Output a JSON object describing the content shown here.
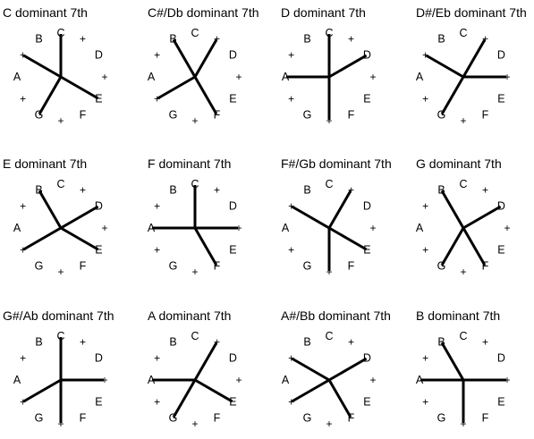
{
  "ring": [
    "C",
    "+",
    "D",
    "+",
    "E",
    "F",
    "+",
    "G",
    "+",
    "A",
    "+",
    "B"
  ],
  "chords": [
    {
      "title": "C dominant 7th",
      "spokes": [
        0,
        4,
        7,
        10
      ]
    },
    {
      "title": "C#/Db dominant 7th",
      "spokes": [
        1,
        5,
        8,
        11
      ]
    },
    {
      "title": "D dominant 7th",
      "spokes": [
        2,
        6,
        9,
        0
      ]
    },
    {
      "title": "D#/Eb dominant 7th",
      "spokes": [
        3,
        7,
        10,
        1
      ]
    },
    {
      "title": "E dominant 7th",
      "spokes": [
        4,
        8,
        11,
        2
      ]
    },
    {
      "title": "F dominant 7th",
      "spokes": [
        5,
        9,
        0,
        3
      ]
    },
    {
      "title": "F#/Gb dominant 7th",
      "spokes": [
        6,
        10,
        1,
        4
      ]
    },
    {
      "title": "G dominant 7th",
      "spokes": [
        7,
        11,
        2,
        5
      ]
    },
    {
      "title": "G#/Ab dominant 7th",
      "spokes": [
        8,
        0,
        3,
        6
      ]
    },
    {
      "title": "A dominant 7th",
      "spokes": [
        9,
        1,
        4,
        7
      ]
    },
    {
      "title": "A#/Bb dominant 7th",
      "spokes": [
        10,
        2,
        5,
        8
      ]
    },
    {
      "title": "B dominant 7th",
      "spokes": [
        11,
        3,
        6,
        9
      ]
    }
  ]
}
